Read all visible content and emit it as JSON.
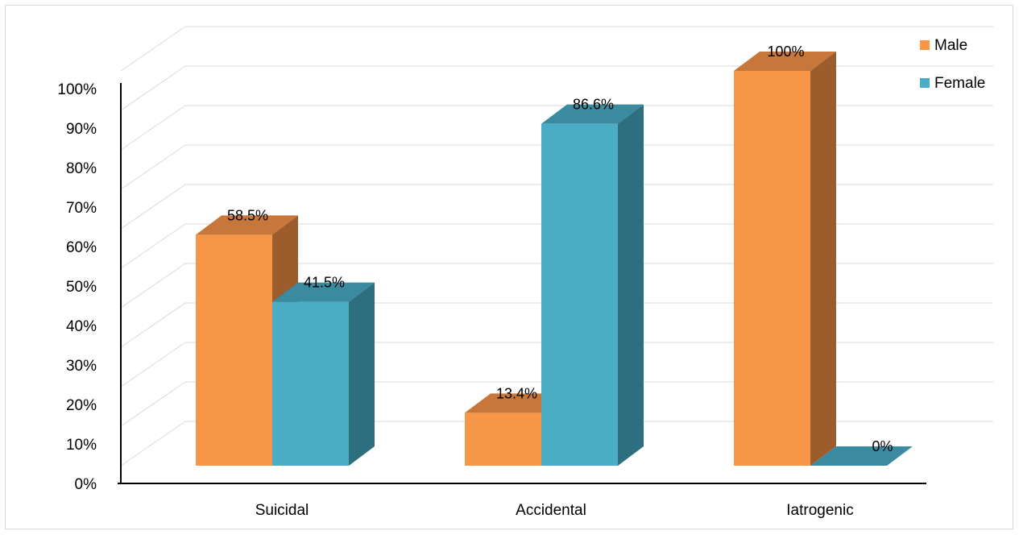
{
  "chart_data": {
    "type": "bar",
    "style": "3d-clustered-column",
    "categories": [
      "Suicidal",
      "Accidental",
      "Iatrogenic"
    ],
    "series": [
      {
        "name": "Male",
        "values": [
          58.5,
          13.4,
          100
        ],
        "labels": [
          "58.5%",
          "13.4%",
          "100%"
        ],
        "color": "#f79646",
        "top_color": "#c8773a",
        "side_color": "#9c5c2b"
      },
      {
        "name": "Female",
        "values": [
          41.5,
          86.6,
          0
        ],
        "labels": [
          "41.5%",
          "86.6%",
          "0%"
        ],
        "color": "#4bacc6",
        "top_color": "#3a8ba0",
        "side_color": "#2e6f7f"
      }
    ],
    "y_ticks": [
      "0%",
      "10%",
      "20%",
      "30%",
      "40%",
      "50%",
      "60%",
      "70%",
      "80%",
      "90%",
      "100%"
    ],
    "ylim": [
      0,
      100
    ],
    "grid": true,
    "legend": "top-right"
  }
}
